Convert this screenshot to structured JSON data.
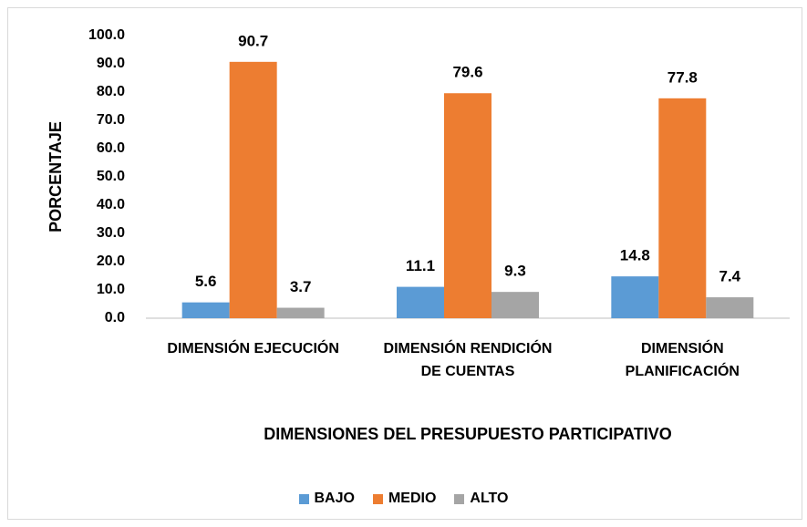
{
  "chart_data": {
    "type": "bar",
    "x_label": "DIMENSIONES DEL PRESUPUESTO PARTICIPATIVO",
    "y_label": "PORCENTAJE",
    "categories": [
      "DIMENSIÓN EJECUCIÓN",
      "DIMENSIÓN RENDICIÓN DE CUENTAS",
      "DIMENSIÓN PLANIFICACIÓN"
    ],
    "series": [
      {
        "name": "BAJO",
        "color": "#5b9bd5",
        "values": [
          5.6,
          11.1,
          14.8
        ]
      },
      {
        "name": "MEDIO",
        "color": "#ed7d31",
        "values": [
          90.7,
          79.6,
          77.8
        ]
      },
      {
        "name": "ALTO",
        "color": "#a5a5a5",
        "values": [
          3.7,
          9.3,
          7.4
        ]
      }
    ],
    "ylim": [
      0,
      100
    ],
    "yticks": [
      {
        "value": 0,
        "label": "0.0"
      },
      {
        "value": 10,
        "label": "10.0"
      },
      {
        "value": 20,
        "label": "20.0"
      },
      {
        "value": 30,
        "label": "30.0"
      },
      {
        "value": 40,
        "label": "40.0"
      },
      {
        "value": 50,
        "label": "50.0"
      },
      {
        "value": 60,
        "label": "60.0"
      },
      {
        "value": 70,
        "label": "70.0"
      },
      {
        "value": 80,
        "label": "80.0"
      },
      {
        "value": 90,
        "label": "90.0"
      },
      {
        "value": 100,
        "label": "100.0"
      }
    ],
    "grid": false,
    "legend": "bottom"
  }
}
